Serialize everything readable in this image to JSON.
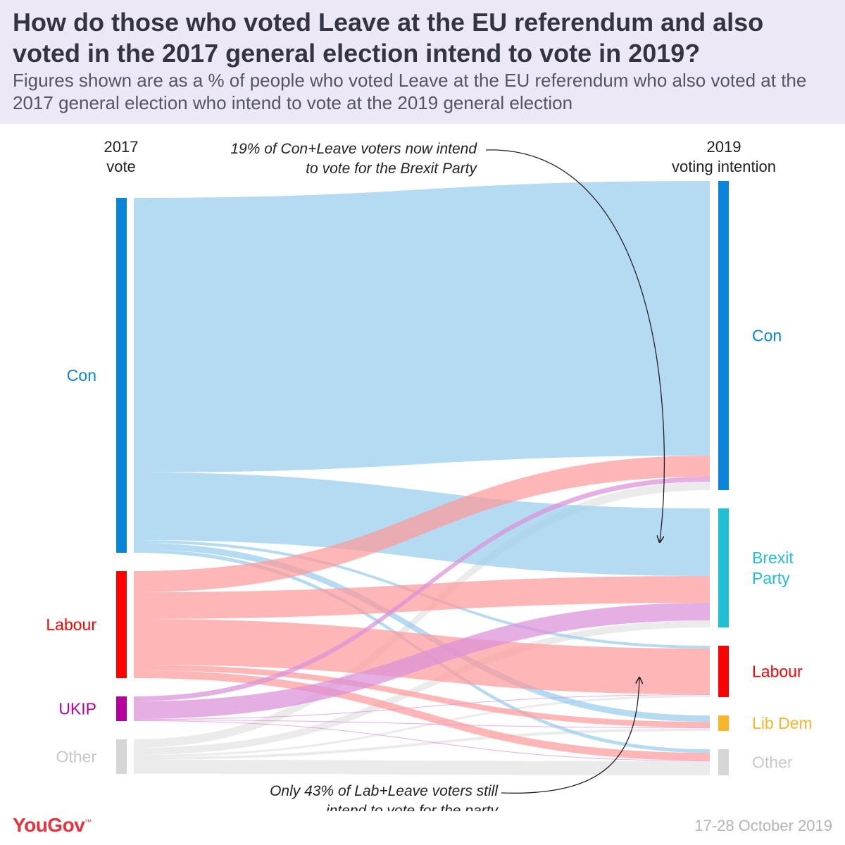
{
  "header": {
    "title": "How do those who voted Leave at the EU referendum and also voted in the 2017 general election intend to vote in 2019?",
    "subtitle": "Figures shown are as a % of people who voted Leave at the EU referendum who also voted at the 2017 general election who intend to vote at the 2019 general election"
  },
  "footer": {
    "brand": "YouGov",
    "date": "17-28 October 2019"
  },
  "chart_data": {
    "type": "sankey",
    "left_axis_title": [
      "2017",
      "vote"
    ],
    "right_axis_title": [
      "2019",
      "voting intention"
    ],
    "left_nodes": [
      {
        "name": "Con",
        "color": "#0a84d8",
        "text_color": "#0a84d8"
      },
      {
        "name": "Labour",
        "color": "#ff0000",
        "text_color": "#ff0000"
      },
      {
        "name": "UKIP",
        "color": "#b5009c",
        "text_color": "#b5009c"
      },
      {
        "name": "Other",
        "color": "#d6d6d6",
        "text_color": "#c8c8c8"
      }
    ],
    "right_nodes": [
      {
        "name": "Con",
        "label_lines": [
          "Con"
        ],
        "color": "#0a84d8",
        "text_color": "#0a84d8"
      },
      {
        "name": "Brexit Party",
        "label_lines": [
          "Brexit",
          "Party"
        ],
        "color": "#1fbfd4",
        "text_color": "#1fbfd4"
      },
      {
        "name": "Labour",
        "label_lines": [
          "Labour"
        ],
        "color": "#ff0000",
        "text_color": "#ff0000"
      },
      {
        "name": "Lib Dem",
        "label_lines": [
          "Lib Dem"
        ],
        "color": "#f9b52a",
        "text_color": "#f9b52a"
      },
      {
        "name": "Other",
        "label_lines": [
          "Other"
        ],
        "color": "#d6d6d6",
        "text_color": "#c8c8c8"
      }
    ],
    "flow_colors": {
      "Con": "#99cdee",
      "Labour": "#ff9a9a",
      "UKIP": "#dd90d8",
      "Other": "#e8e8e8"
    },
    "flows": [
      {
        "source": "Con",
        "target": "Con",
        "value": 390
      },
      {
        "source": "Con",
        "target": "Brexit Party",
        "value": 96
      },
      {
        "source": "Con",
        "target": "Labour",
        "value": 4
      },
      {
        "source": "Con",
        "target": "Lib Dem",
        "value": 9
      },
      {
        "source": "Con",
        "target": "Other",
        "value": 5
      },
      {
        "source": "Labour",
        "target": "Con",
        "value": 30
      },
      {
        "source": "Labour",
        "target": "Brexit Party",
        "value": 38
      },
      {
        "source": "Labour",
        "target": "Labour",
        "value": 65
      },
      {
        "source": "Labour",
        "target": "Lib Dem",
        "value": 8
      },
      {
        "source": "Labour",
        "target": "Other",
        "value": 11
      },
      {
        "source": "UKIP",
        "target": "Con",
        "value": 7
      },
      {
        "source": "UKIP",
        "target": "Brexit Party",
        "value": 25
      },
      {
        "source": "UKIP",
        "target": "Labour",
        "value": 1
      },
      {
        "source": "UKIP",
        "target": "Lib Dem",
        "value": 1
      },
      {
        "source": "UKIP",
        "target": "Other",
        "value": 1
      },
      {
        "source": "Other",
        "target": "Con",
        "value": 12
      },
      {
        "source": "Other",
        "target": "Brexit Party",
        "value": 10
      },
      {
        "source": "Other",
        "target": "Labour",
        "value": 3
      },
      {
        "source": "Other",
        "target": "Lib Dem",
        "value": 4
      },
      {
        "source": "Other",
        "target": "Other",
        "value": 20
      }
    ],
    "annotations": [
      {
        "lines": [
          "19% of Con+Leave voters now intend",
          "to vote for the Brexit Party"
        ]
      },
      {
        "lines": [
          "Only 43% of Lab+Leave voters still",
          "intend to vote for the party"
        ]
      }
    ]
  }
}
